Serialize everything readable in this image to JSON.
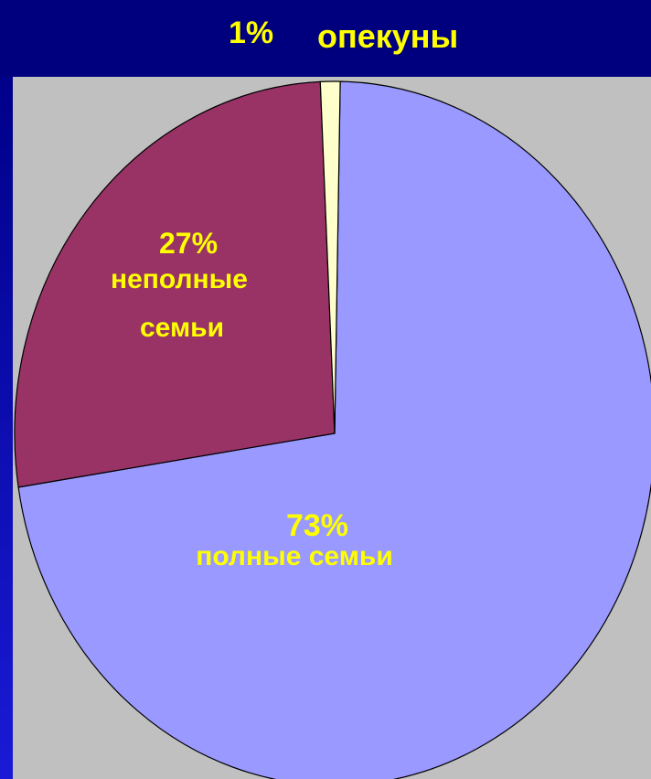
{
  "chart_data": {
    "type": "pie",
    "slices": [
      {
        "name": "полные семьи",
        "percent_label": "73%",
        "value": 73,
        "color": "#9999ff"
      },
      {
        "name": "неполные семьи",
        "lines": [
          "неполные",
          "семьи"
        ],
        "percent_label": "27%",
        "value": 27,
        "color": "#993366"
      },
      {
        "name": "опекуны",
        "percent_label": "1%",
        "value": 1,
        "color": "#ffffcc"
      }
    ],
    "colors": {
      "background": "#000080",
      "plot_area": "#c0c0c0",
      "label_text": "#ffff00",
      "slice_edge": "#000000"
    }
  }
}
